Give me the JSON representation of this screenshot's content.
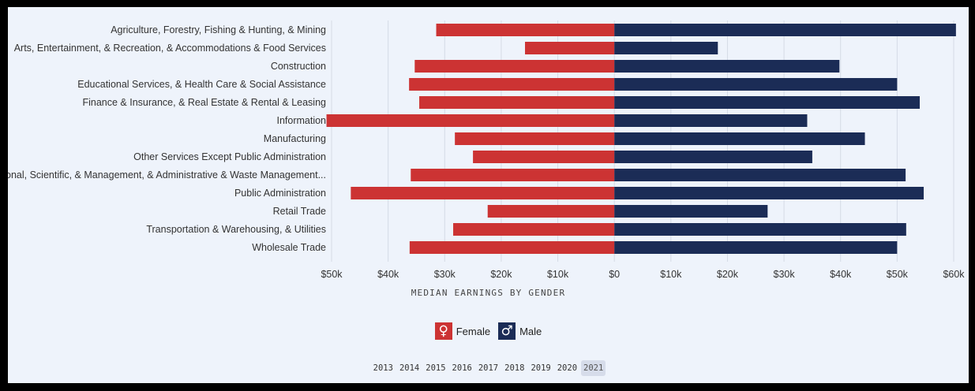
{
  "chart_data": {
    "type": "bar",
    "orientation": "horizontal-diverging",
    "categories": [
      "Agriculture, Forestry, Fishing & Hunting, & Mining",
      "Arts, Entertainment, & Recreation, & Accommodations & Food Services",
      "Construction",
      "Educational Services, & Health Care & Social Assistance",
      "Finance & Insurance, & Real Estate & Rental & Leasing",
      "Information",
      "Manufacturing",
      "Other Services Except Public Administration",
      "Professional, Scientific, & Management, & Administrative & Waste Management...",
      "Public Administration",
      "Retail Trade",
      "Transportation & Warehousing, & Utilities",
      "Wholesale Trade"
    ],
    "series": [
      {
        "name": "Female",
        "color": "#cc3333",
        "values": [
          31500,
          15800,
          35300,
          36300,
          34500,
          50900,
          28200,
          25000,
          36000,
          46600,
          22400,
          28500,
          36200
        ]
      },
      {
        "name": "Male",
        "color": "#1b2c56",
        "values": [
          60400,
          18300,
          39800,
          50000,
          54000,
          34100,
          44300,
          35000,
          51500,
          54700,
          27100,
          51600,
          50000
        ]
      }
    ],
    "xlabel": "MEDIAN EARNINGS BY GENDER",
    "ticks": [
      -50000,
      -40000,
      -30000,
      -20000,
      -10000,
      0,
      10000,
      20000,
      30000,
      40000,
      50000,
      60000
    ],
    "tick_labels": [
      "$50k",
      "$40k",
      "$30k",
      "$20k",
      "$10k",
      "$0",
      "$10k",
      "$20k",
      "$30k",
      "$40k",
      "$50k",
      "$60k"
    ],
    "xlim": [
      -50000,
      60000
    ],
    "grid": true,
    "legend_position": "bottom-center"
  },
  "legend": {
    "female_label": "Female",
    "male_label": "Male",
    "female_icon": "female-symbol-icon",
    "male_icon": "male-symbol-icon"
  },
  "years": {
    "items": [
      "2013",
      "2014",
      "2015",
      "2016",
      "2017",
      "2018",
      "2019",
      "2020",
      "2021"
    ],
    "selected": "2021"
  }
}
